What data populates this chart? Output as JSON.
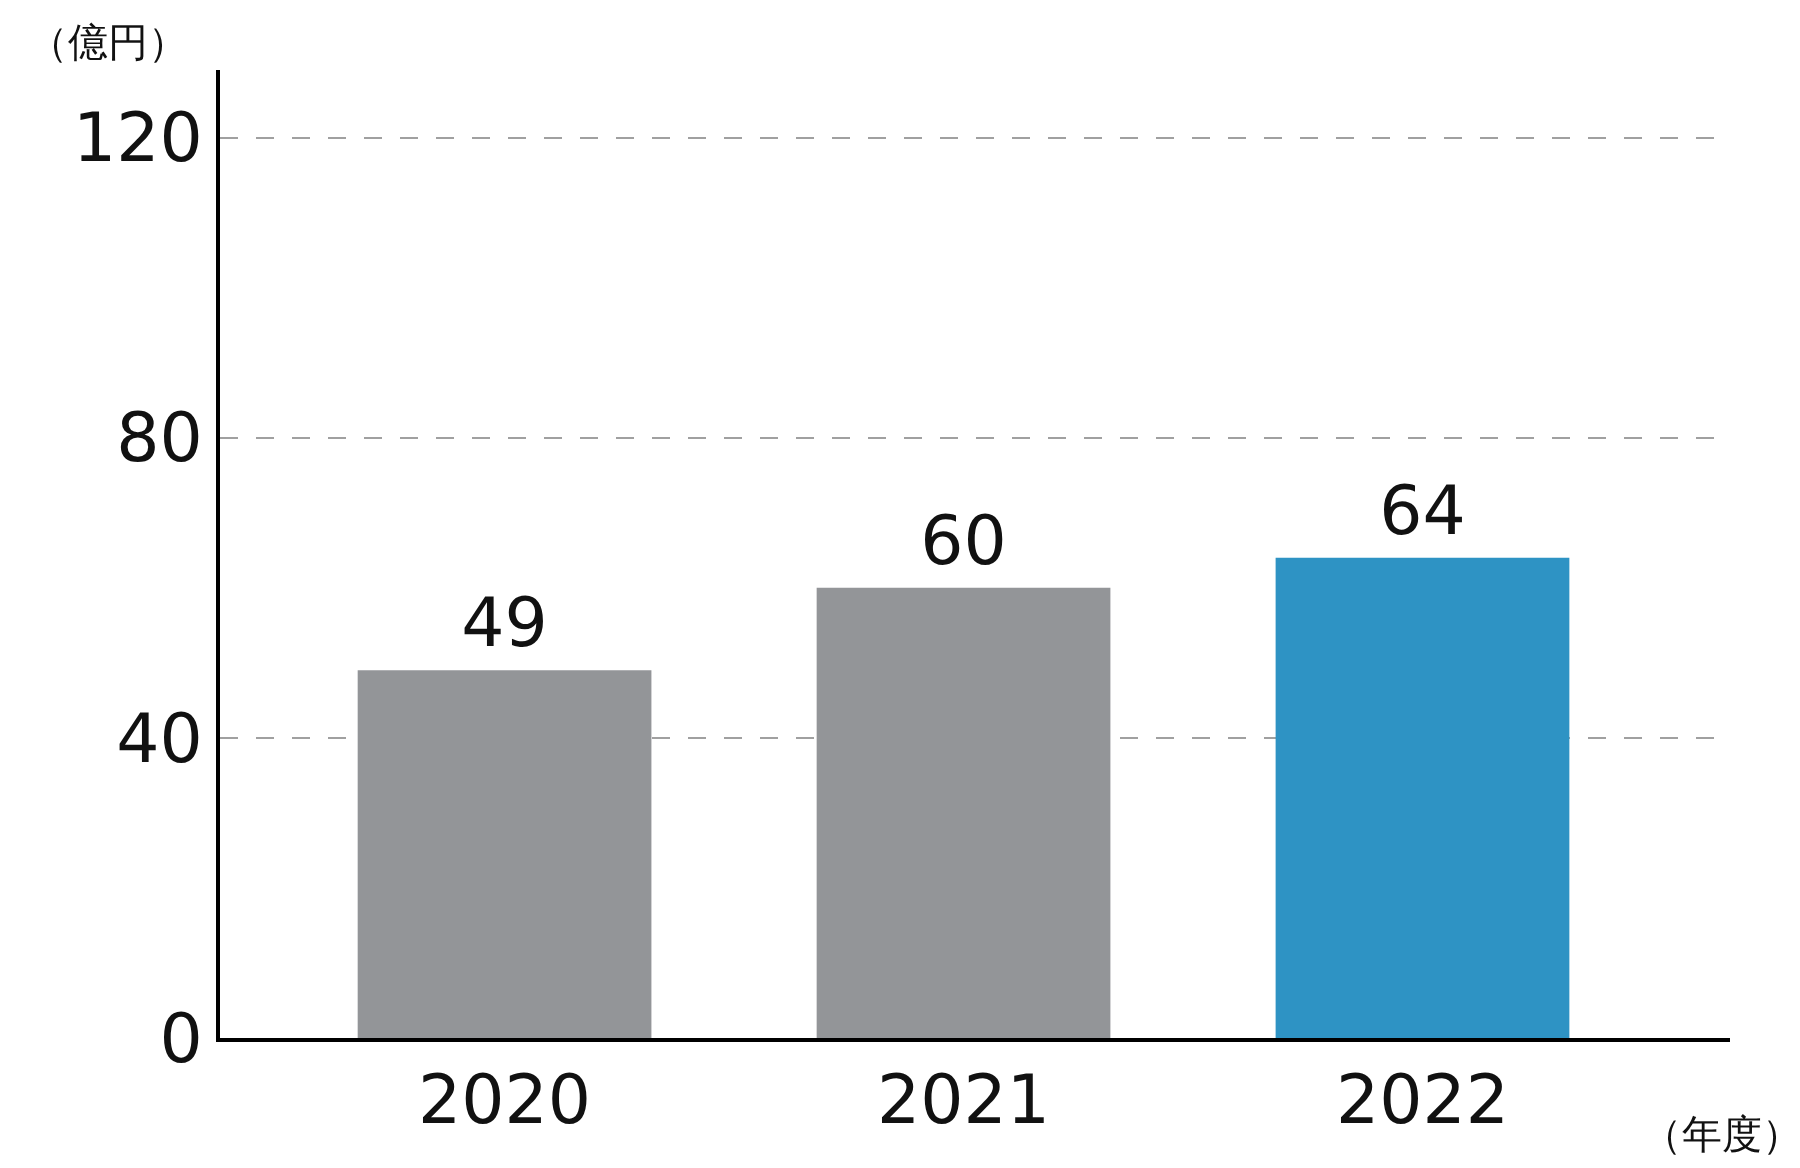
{
  "chart_data": {
    "type": "bar",
    "ylabel": "（億円）",
    "xlabel": "（年度）",
    "categories": [
      "2020",
      "2021",
      "2022"
    ],
    "values": [
      49,
      60,
      64
    ],
    "colors": [
      "#939598",
      "#939598",
      "#2e93c4"
    ],
    "ylim": [
      0,
      129
    ],
    "yticks": [
      0,
      40,
      80,
      120
    ],
    "grid": "y",
    "data_labels": true
  }
}
